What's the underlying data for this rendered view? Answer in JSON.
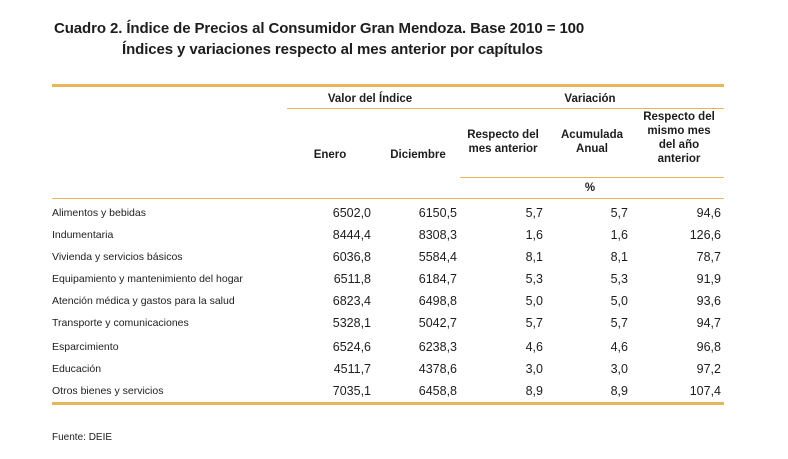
{
  "title": {
    "line1": "Cuadro 2. Índice de Precios al Consumidor Gran Mendoza. Base 2010 = 100",
    "line2": "Índices y variaciones respecto al mes anterior por capítulos"
  },
  "table": {
    "group_headers": {
      "valor": "Valor del Índice",
      "variacion": "Variación"
    },
    "col_headers": {
      "enero": "Enero",
      "diciembre": "Diciembre",
      "respecto_mes_l1": "Respecto del",
      "respecto_mes_l2": "mes anterior",
      "acumulada_l1": "Acumulada",
      "acumulada_l2": "Anual",
      "mismo_mes_l1": "Respecto del",
      "mismo_mes_l2": "mismo mes",
      "mismo_mes_l3": "del año",
      "mismo_mes_l4": "anterior",
      "unit": "%"
    },
    "rows": [
      {
        "label": "Alimentos y bebidas",
        "enero": "6502,0",
        "diciembre": "6150,5",
        "mes": "5,7",
        "acum": "5,7",
        "anio": "94,6"
      },
      {
        "label": "Indumentaria",
        "enero": "8444,4",
        "diciembre": "8308,3",
        "mes": "1,6",
        "acum": "1,6",
        "anio": "126,6"
      },
      {
        "label": "Vivienda y servicios básicos",
        "enero": "6036,8",
        "diciembre": "5584,4",
        "mes": "8,1",
        "acum": "8,1",
        "anio": "78,7"
      },
      {
        "label": "Equipamiento y mantenimiento del hogar",
        "enero": "6511,8",
        "diciembre": "6184,7",
        "mes": "5,3",
        "acum": "5,3",
        "anio": "91,9"
      },
      {
        "label": "Atención médica y gastos para la salud",
        "enero": "6823,4",
        "diciembre": "6498,8",
        "mes": "5,0",
        "acum": "5,0",
        "anio": "93,6"
      },
      {
        "label": "Transporte y comunicaciones",
        "enero": "5328,1",
        "diciembre": "5042,7",
        "mes": "5,7",
        "acum": "5,7",
        "anio": "94,7"
      },
      {
        "label": "Esparcimiento",
        "enero": "6524,6",
        "diciembre": "6238,3",
        "mes": "4,6",
        "acum": "4,6",
        "anio": "96,8"
      },
      {
        "label": "Educación",
        "enero": "4511,7",
        "diciembre": "4378,6",
        "mes": "3,0",
        "acum": "3,0",
        "anio": "97,2"
      },
      {
        "label": "Otros bienes y servicios",
        "enero": "7035,1",
        "diciembre": "6458,8",
        "mes": "8,9",
        "acum": "8,9",
        "anio": "107,4"
      }
    ]
  },
  "source": "Fuente: DEIE",
  "colors": {
    "rule": "#e8b65a",
    "text": "#1d1d1d"
  }
}
